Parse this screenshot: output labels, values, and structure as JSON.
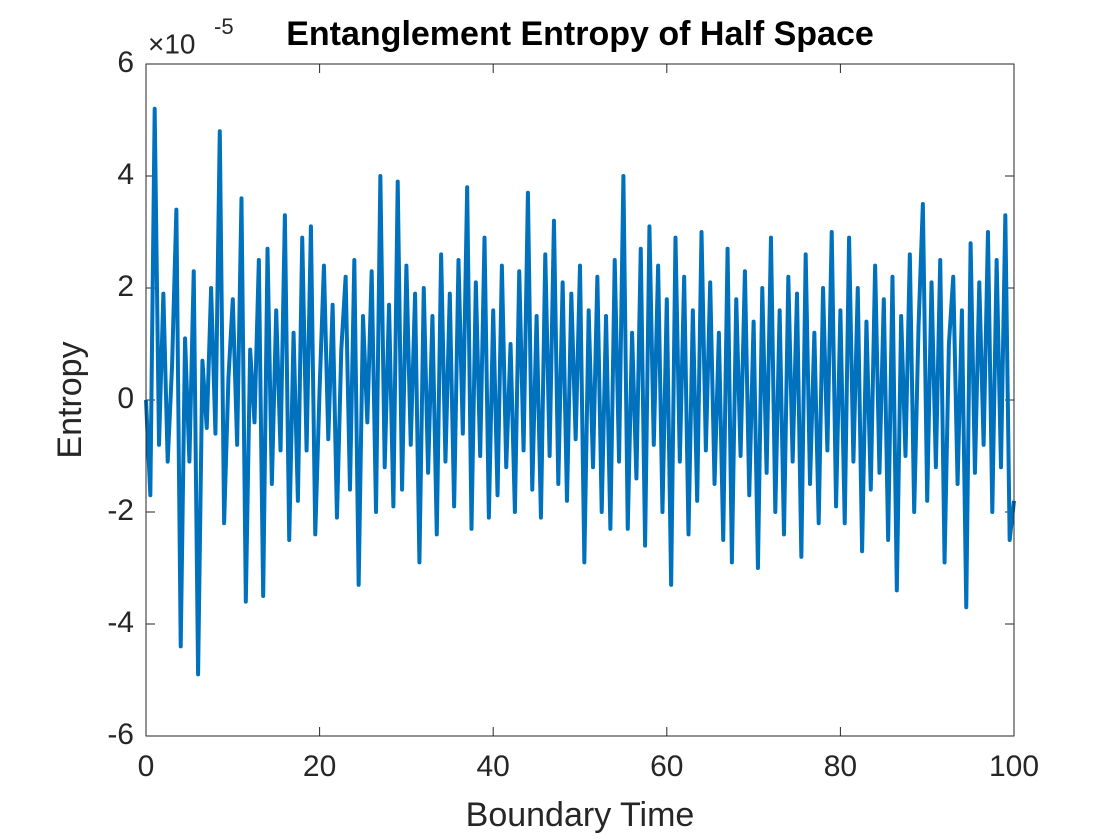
{
  "chart_data": {
    "type": "line",
    "title": "Entanglement Entropy of Half Space",
    "xlabel": "Boundary Time",
    "ylabel": "Entropy",
    "y_exponent": {
      "base": "×10",
      "power": "-5"
    },
    "color": "#0072bd",
    "xlim": [
      0,
      100
    ],
    "xticks": [
      0,
      20,
      40,
      60,
      80,
      100
    ],
    "ylim": [
      -6,
      6
    ],
    "yticks": [
      -6,
      -4,
      -2,
      0,
      2,
      4,
      6
    ],
    "x": [
      0,
      0.5,
      1,
      1.5,
      2,
      2.5,
      3,
      3.5,
      4,
      4.5,
      5,
      5.5,
      6,
      6.5,
      7,
      7.5,
      8,
      8.5,
      9,
      9.5,
      10,
      10.5,
      11,
      11.5,
      12,
      12.5,
      13,
      13.5,
      14,
      14.5,
      15,
      15.5,
      16,
      16.5,
      17,
      17.5,
      18,
      18.5,
      19,
      19.5,
      20,
      20.5,
      21,
      21.5,
      22,
      22.5,
      23,
      23.5,
      24,
      24.5,
      25,
      25.5,
      26,
      26.5,
      27,
      27.5,
      28,
      28.5,
      29,
      29.5,
      30,
      30.5,
      31,
      31.5,
      32,
      32.5,
      33,
      33.5,
      34,
      34.5,
      35,
      35.5,
      36,
      36.5,
      37,
      37.5,
      38,
      38.5,
      39,
      39.5,
      40,
      40.5,
      41,
      41.5,
      42,
      42.5,
      43,
      43.5,
      44,
      44.5,
      45,
      45.5,
      46,
      46.5,
      47,
      47.5,
      48,
      48.5,
      49,
      49.5,
      50,
      50.5,
      51,
      51.5,
      52,
      52.5,
      53,
      53.5,
      54,
      54.5,
      55,
      55.5,
      56,
      56.5,
      57,
      57.5,
      58,
      58.5,
      59,
      59.5,
      60,
      60.5,
      61,
      61.5,
      62,
      62.5,
      63,
      63.5,
      64,
      64.5,
      65,
      65.5,
      66,
      66.5,
      67,
      67.5,
      68,
      68.5,
      69,
      69.5,
      70,
      70.5,
      71,
      71.5,
      72,
      72.5,
      73,
      73.5,
      74,
      74.5,
      75,
      75.5,
      76,
      76.5,
      77,
      77.5,
      78,
      78.5,
      79,
      79.5,
      80,
      80.5,
      81,
      81.5,
      82,
      82.5,
      83,
      83.5,
      84,
      84.5,
      85,
      85.5,
      86,
      86.5,
      87,
      87.5,
      88,
      88.5,
      89,
      89.5,
      90,
      90.5,
      91,
      91.5,
      92,
      92.5,
      93,
      93.5,
      94,
      94.5,
      95,
      95.5,
      96,
      96.5,
      97,
      97.5,
      98,
      98.5,
      99,
      99.5,
      100
    ],
    "values": [
      0,
      -1.7,
      5.2,
      -0.8,
      1.9,
      -1.1,
      0.6,
      3.4,
      -4.4,
      1.1,
      -1.1,
      2.3,
      -4.9,
      0.7,
      -0.5,
      2.0,
      -0.6,
      4.8,
      -2.2,
      0.4,
      1.8,
      -0.8,
      3.6,
      -3.6,
      0.9,
      -0.4,
      2.5,
      -3.5,
      2.7,
      -1.5,
      1.6,
      -0.9,
      3.3,
      -2.5,
      1.2,
      -1.8,
      2.9,
      -0.9,
      3.1,
      -2.4,
      0.2,
      2.4,
      -0.7,
      1.7,
      -2.1,
      0.9,
      2.2,
      -1.6,
      2.5,
      -3.3,
      1.5,
      -0.4,
      2.3,
      -2.0,
      4.0,
      -1.2,
      1.7,
      -1.9,
      3.9,
      -1.6,
      2.4,
      -0.8,
      1.9,
      -2.9,
      2.0,
      -1.3,
      1.5,
      -2.4,
      2.6,
      -1.1,
      1.9,
      -1.9,
      2.5,
      -0.6,
      3.8,
      -2.3,
      2.1,
      -1.0,
      2.9,
      -2.1,
      1.6,
      -1.7,
      2.4,
      -1.2,
      1.0,
      -2.0,
      2.3,
      -0.9,
      3.7,
      -1.6,
      1.5,
      -2.1,
      2.6,
      -1.0,
      3.2,
      -1.5,
      2.1,
      -1.8,
      1.9,
      -0.7,
      2.4,
      -2.9,
      1.6,
      -1.2,
      2.2,
      -2.0,
      1.5,
      -2.3,
      2.5,
      -1.1,
      4.0,
      -2.3,
      1.2,
      -1.4,
      2.7,
      -2.6,
      3.1,
      -0.8,
      2.4,
      -2.0,
      1.8,
      -3.3,
      2.9,
      -1.1,
      2.2,
      -2.4,
      1.6,
      -1.8,
      3.0,
      -0.9,
      2.1,
      -1.5,
      1.2,
      -2.5,
      2.7,
      -2.9,
      1.8,
      -1.0,
      2.3,
      -1.7,
      1.4,
      -3.0,
      2.0,
      -1.3,
      2.9,
      -2.0,
      1.6,
      -2.4,
      2.2,
      -1.1,
      1.9,
      -2.8,
      2.6,
      -1.5,
      1.2,
      -2.2,
      2.0,
      -0.9,
      3.0,
      -1.9,
      1.6,
      -2.2,
      2.9,
      -1.1,
      2.0,
      -2.7,
      1.4,
      -1.6,
      2.4,
      -1.3,
      1.8,
      -2.5,
      2.2,
      -3.4,
      1.5,
      -1.0,
      2.6,
      -2.0,
      1.3,
      3.5,
      -1.8,
      2.1,
      -1.2,
      2.5,
      -2.9,
      1.0,
      2.2,
      -1.5,
      1.6,
      -3.7,
      2.8,
      -1.3,
      2.1,
      -0.8,
      3.0,
      -2.0,
      2.5,
      -1.2,
      3.3,
      -2.5,
      -1.8
    ]
  }
}
